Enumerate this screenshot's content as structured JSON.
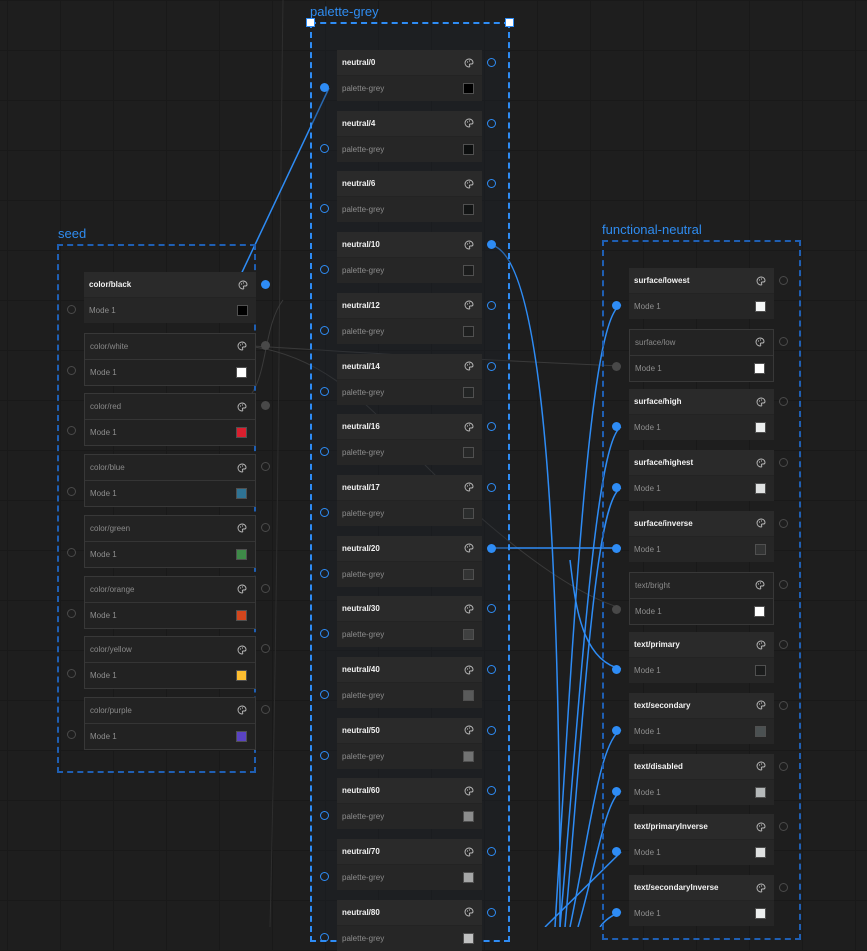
{
  "colors": {
    "accent": "#2e8cf5",
    "background": "#1e1e1e",
    "node_bg": "#2a2a2a"
  },
  "groups": {
    "seed": {
      "label": "seed",
      "nodes": [
        {
          "name": "color/black",
          "mode": "Mode 1",
          "swatch": "#000000",
          "dim": false
        },
        {
          "name": "color/white",
          "mode": "Mode 1",
          "swatch": "#ffffff",
          "dim": true
        },
        {
          "name": "color/red",
          "mode": "Mode 1",
          "swatch": "#d91f2e",
          "dim": true
        },
        {
          "name": "color/blue",
          "mode": "Mode 1",
          "swatch": "#2f7394",
          "dim": true
        },
        {
          "name": "color/green",
          "mode": "Mode 1",
          "swatch": "#3e8a48",
          "dim": true
        },
        {
          "name": "color/orange",
          "mode": "Mode 1",
          "swatch": "#d2461d",
          "dim": true
        },
        {
          "name": "color/yellow",
          "mode": "Mode 1",
          "swatch": "#fcbd30",
          "dim": true
        },
        {
          "name": "color/purple",
          "mode": "Mode 1",
          "swatch": "#5a43c2",
          "dim": true
        }
      ]
    },
    "palette_grey": {
      "label": "palette-grey",
      "nodes": [
        {
          "name": "neutral/0",
          "mode": "palette-grey",
          "swatch": "#000000"
        },
        {
          "name": "neutral/4",
          "mode": "palette-grey",
          "swatch": "#0d0f0f"
        },
        {
          "name": "neutral/6",
          "mode": "palette-grey",
          "swatch": "#131515"
        },
        {
          "name": "neutral/10",
          "mode": "palette-grey",
          "swatch": "#1b1c1c"
        },
        {
          "name": "neutral/12",
          "mode": "palette-grey",
          "swatch": "#1e1f1f"
        },
        {
          "name": "neutral/14",
          "mode": "palette-grey",
          "swatch": "#222424"
        },
        {
          "name": "neutral/16",
          "mode": "palette-grey",
          "swatch": "#272828"
        },
        {
          "name": "neutral/17",
          "mode": "palette-grey",
          "swatch": "#2b2d2d"
        },
        {
          "name": "neutral/20",
          "mode": "palette-grey",
          "swatch": "#333434"
        },
        {
          "name": "neutral/30",
          "mode": "palette-grey",
          "swatch": "#3f4040"
        },
        {
          "name": "neutral/40",
          "mode": "palette-grey",
          "swatch": "#595a5a"
        },
        {
          "name": "neutral/50",
          "mode": "palette-grey",
          "swatch": "#727373"
        },
        {
          "name": "neutral/60",
          "mode": "palette-grey",
          "swatch": "#8c8d8d"
        },
        {
          "name": "neutral/70",
          "mode": "palette-grey",
          "swatch": "#a6a7a7"
        },
        {
          "name": "neutral/80",
          "mode": "palette-grey",
          "swatch": "#c0c1c1"
        }
      ]
    },
    "functional_neutral": {
      "label": "functional-neutral",
      "nodes": [
        {
          "name": "surface/lowest",
          "mode": "Mode 1",
          "swatch": "#f5f7f7",
          "dim": false
        },
        {
          "name": "surface/low",
          "mode": "Mode 1",
          "swatch": "#ffffff",
          "dim": true
        },
        {
          "name": "surface/high",
          "mode": "Mode 1",
          "swatch": "#eceeee",
          "dim": false
        },
        {
          "name": "surface/highest",
          "mode": "Mode 1",
          "swatch": "#dfe1e1",
          "dim": false
        },
        {
          "name": "surface/inverse",
          "mode": "Mode 1",
          "swatch": "#333434",
          "dim": false
        },
        {
          "name": "text/bright",
          "mode": "Mode 1",
          "swatch": "#ffffff",
          "dim": true
        },
        {
          "name": "text/primary",
          "mode": "Mode 1",
          "swatch": "#1b1c1c",
          "dim": false
        },
        {
          "name": "text/secondary",
          "mode": "Mode 1",
          "swatch": "#4b5152",
          "dim": false
        },
        {
          "name": "text/disabled",
          "mode": "Mode 1",
          "swatch": "#b5b9ba",
          "dim": false
        },
        {
          "name": "text/primaryInverse",
          "mode": "Mode 1",
          "swatch": "#dfe1e1",
          "dim": false
        },
        {
          "name": "text/secondaryInverse",
          "mode": "Mode 1",
          "swatch": "#eceeee",
          "dim": false
        }
      ]
    }
  },
  "icons": {
    "node_icon": "color-palette-icon",
    "port": "connector-port"
  }
}
